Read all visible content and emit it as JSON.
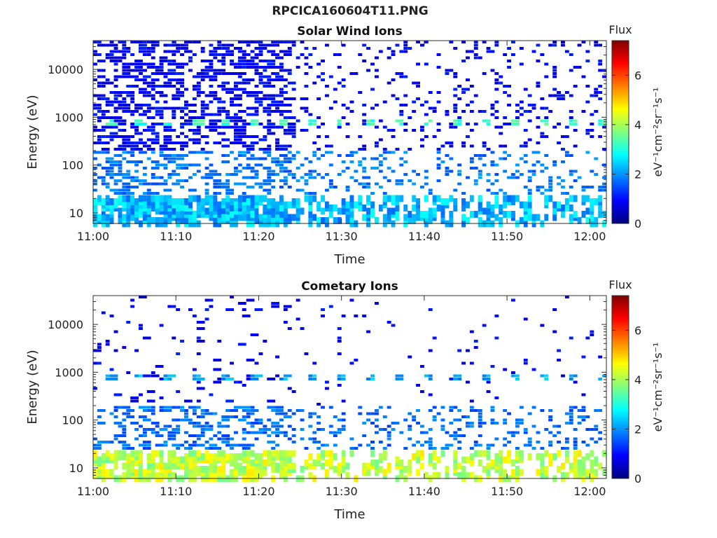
{
  "figure": {
    "title": "RPCICA160604T11.PNG"
  },
  "colors": {
    "frame": "#2b2b2b",
    "colormap": [
      "#00007f",
      "#0000ff",
      "#007fff",
      "#00ffff",
      "#7fff7f",
      "#ffff00",
      "#ff7f00",
      "#ff0000",
      "#7f0000"
    ]
  },
  "chart_data": [
    {
      "type": "heatmap",
      "title": "Solar Wind Ions",
      "xlabel": "Time",
      "ylabel": "Energy (eV)",
      "y_scale": "log",
      "x_range": [
        "11:00",
        "12:02"
      ],
      "ylim": [
        6,
        40000
      ],
      "x_ticks": [
        "11:00",
        "11:10",
        "11:20",
        "11:30",
        "11:40",
        "11:50",
        "12:00"
      ],
      "y_ticks": [
        "10",
        "100",
        "1000",
        "10000"
      ],
      "colorbar": {
        "label": "Flux",
        "unit": "eV⁻¹cm⁻²sr⁻¹s⁻¹",
        "range": [
          0,
          7.4
        ],
        "ticks": [
          "0",
          "2",
          "4",
          "6"
        ]
      },
      "features": {
        "dense_until": "11:24",
        "band_energy_eV": 800,
        "band_level": 3.0,
        "low_energy_level": 2.3
      }
    },
    {
      "type": "heatmap",
      "title": "Cometary Ions",
      "xlabel": "Time",
      "ylabel": "Energy (eV)",
      "y_scale": "log",
      "x_range": [
        "11:00",
        "12:02"
      ],
      "ylim": [
        6,
        40000
      ],
      "x_ticks": [
        "11:00",
        "11:10",
        "11:20",
        "11:30",
        "11:40",
        "11:50",
        "12:00"
      ],
      "y_ticks": [
        "10",
        "100",
        "1000",
        "10000"
      ],
      "colorbar": {
        "label": "Flux",
        "unit": "eV⁻¹cm⁻²sr⁻¹s⁻¹",
        "range": [
          0,
          7.4
        ],
        "ticks": [
          "0",
          "2",
          "4",
          "6"
        ]
      },
      "features": {
        "dense_until": "11:24",
        "band_energy_eV": 800,
        "band_level": 2.0,
        "low_energy_level": 4.2
      }
    }
  ]
}
